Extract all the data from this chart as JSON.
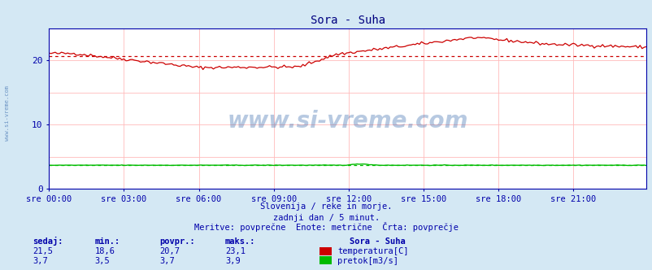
{
  "title": "Sora - Suha",
  "bg_color": "#d4e8f4",
  "plot_bg_color": "#ffffff",
  "grid_color_v": "#ffbbbb",
  "grid_color_h": "#ffbbbb",
  "x_ticks": [
    "sre 00:00",
    "sre 03:00",
    "sre 06:00",
    "sre 09:00",
    "sre 12:00",
    "sre 15:00",
    "sre 18:00",
    "sre 21:00"
  ],
  "x_tick_positions": [
    0,
    36,
    72,
    108,
    144,
    180,
    216,
    252
  ],
  "total_points": 288,
  "y_ticks": [
    0,
    10,
    20
  ],
  "ylim": [
    0,
    25
  ],
  "title_color": "#000080",
  "axis_color": "#0000aa",
  "text_color": "#0000aa",
  "temp_color": "#cc0000",
  "flow_color": "#00bb00",
  "avg_temp": 20.7,
  "avg_flow": 3.7,
  "footer_line1": "Slovenija / reke in morje.",
  "footer_line2": "zadnji dan / 5 minut.",
  "footer_line3": "Meritve: povprečne  Enote: metrične  Črta: povprečje",
  "legend_title": "Sora - Suha",
  "legend_items": [
    {
      "label": "temperatura[C]",
      "color": "#cc0000"
    },
    {
      "label": "pretok[m3/s]",
      "color": "#00bb00"
    }
  ],
  "stats_headers": [
    "sedaj:",
    "min.:",
    "povpr.:",
    "maks.:"
  ],
  "stats_temp": [
    "21,5",
    "18,6",
    "20,7",
    "23,1"
  ],
  "stats_flow": [
    "3,7",
    "3,5",
    "3,7",
    "3,9"
  ],
  "watermark": "www.si-vreme.com",
  "watermark_color": "#3366aa",
  "watermark_alpha": 0.35,
  "left_label": "www.si-vreme.com"
}
